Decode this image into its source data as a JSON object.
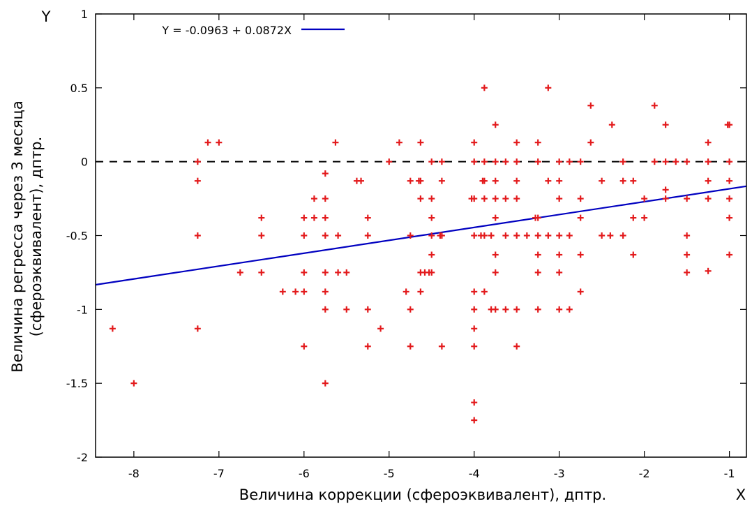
{
  "chart_data": {
    "type": "scatter",
    "title": "",
    "xlabel": "Величина коррекции (сфероэквивалент), дптр.",
    "ylabel_line1": "Величина регресса через 3 месяца",
    "ylabel_line2": "(сфероэквивалент), дптр.",
    "x_axis_letter": "X",
    "y_axis_letter": "Y",
    "xlim": [
      -8.45,
      -0.8
    ],
    "ylim": [
      -2,
      1
    ],
    "x_ticks": [
      -8,
      -7,
      -6,
      -5,
      -4,
      -3,
      -2,
      -1
    ],
    "y_ticks": [
      -2,
      -1.5,
      -1,
      -0.5,
      0,
      0.5,
      1
    ],
    "x_tick_labels": [
      "-8",
      "-7",
      "-6",
      "-5",
      "-4",
      "-3",
      "-2",
      "-1"
    ],
    "y_tick_labels": [
      "-2",
      "-1.5",
      "-1",
      "-0.5",
      "0",
      "0.5",
      "1"
    ],
    "grid": false,
    "legend_position": "top-left",
    "reference_line": {
      "y": 0,
      "style": "dashed",
      "color": "#000000"
    },
    "regression": {
      "label": "Y = -0.0963 + 0.0872X",
      "intercept": -0.0963,
      "slope": 0.0872,
      "color": "#0000c0"
    },
    "point_color": "#e31a1c",
    "points": [
      [
        -8.25,
        -1.13
      ],
      [
        -8.0,
        -1.5
      ],
      [
        -7.25,
        0.0
      ],
      [
        -7.25,
        -0.13
      ],
      [
        -7.25,
        -0.5
      ],
      [
        -7.25,
        -1.13
      ],
      [
        -7.13,
        0.13
      ],
      [
        -7.0,
        0.13
      ],
      [
        -6.75,
        -0.75
      ],
      [
        -6.5,
        -0.38
      ],
      [
        -6.5,
        -0.5
      ],
      [
        -6.5,
        -0.75
      ],
      [
        -6.25,
        -0.88
      ],
      [
        -6.1,
        -0.88
      ],
      [
        -6.0,
        -0.38
      ],
      [
        -6.0,
        -0.5
      ],
      [
        -6.0,
        -0.75
      ],
      [
        -6.0,
        -0.88
      ],
      [
        -6.0,
        -1.25
      ],
      [
        -5.88,
        -0.25
      ],
      [
        -5.88,
        -0.38
      ],
      [
        -5.75,
        -0.08
      ],
      [
        -5.75,
        -0.25
      ],
      [
        -5.75,
        -0.38
      ],
      [
        -5.75,
        -0.5
      ],
      [
        -5.75,
        -0.75
      ],
      [
        -5.75,
        -0.88
      ],
      [
        -5.75,
        -1.0
      ],
      [
        -5.75,
        -1.5
      ],
      [
        -5.63,
        0.13
      ],
      [
        -5.6,
        -0.5
      ],
      [
        -5.6,
        -0.75
      ],
      [
        -5.5,
        -0.75
      ],
      [
        -5.5,
        -1.0
      ],
      [
        -5.38,
        -0.13
      ],
      [
        -5.33,
        -0.13
      ],
      [
        -5.25,
        -0.38
      ],
      [
        -5.25,
        -0.5
      ],
      [
        -5.25,
        -1.0
      ],
      [
        -5.25,
        -1.25
      ],
      [
        -5.1,
        -1.13
      ],
      [
        -5.0,
        0.0
      ],
      [
        -4.88,
        0.13
      ],
      [
        -4.8,
        -0.88
      ],
      [
        -4.75,
        -0.13
      ],
      [
        -4.75,
        -0.5
      ],
      [
        -4.75,
        -1.0
      ],
      [
        -4.75,
        -1.25
      ],
      [
        -4.63,
        0.13
      ],
      [
        -4.63,
        -0.13
      ],
      [
        -4.65,
        -0.13
      ],
      [
        -4.63,
        -0.25
      ],
      [
        -4.63,
        -0.75
      ],
      [
        -4.63,
        -0.88
      ],
      [
        -4.58,
        -0.75
      ],
      [
        -4.53,
        -0.75
      ],
      [
        -4.5,
        0.0
      ],
      [
        -4.5,
        -0.25
      ],
      [
        -4.5,
        -0.38
      ],
      [
        -4.5,
        -0.5
      ],
      [
        -4.5,
        -0.63
      ],
      [
        -4.5,
        -0.75
      ],
      [
        -4.38,
        0.0
      ],
      [
        -4.38,
        -0.13
      ],
      [
        -4.38,
        -0.5
      ],
      [
        -4.4,
        -0.5
      ],
      [
        -4.38,
        -1.25
      ],
      [
        -4.0,
        0.13
      ],
      [
        -4.0,
        0.0
      ],
      [
        -4.0,
        -0.25
      ],
      [
        -4.03,
        -0.25
      ],
      [
        -4.0,
        -0.5
      ],
      [
        -4.0,
        -0.88
      ],
      [
        -4.0,
        -1.0
      ],
      [
        -4.0,
        -1.13
      ],
      [
        -4.0,
        -1.25
      ],
      [
        -4.0,
        -1.63
      ],
      [
        -4.0,
        -1.75
      ],
      [
        -3.92,
        -0.5
      ],
      [
        -3.88,
        0.5
      ],
      [
        -3.88,
        0.0
      ],
      [
        -3.88,
        -0.13
      ],
      [
        -3.9,
        -0.13
      ],
      [
        -3.88,
        -0.25
      ],
      [
        -3.88,
        -0.5
      ],
      [
        -3.88,
        -0.88
      ],
      [
        -3.8,
        -0.5
      ],
      [
        -3.8,
        -1.0
      ],
      [
        -3.75,
        0.25
      ],
      [
        -3.75,
        0.0
      ],
      [
        -3.75,
        -0.13
      ],
      [
        -3.75,
        -0.25
      ],
      [
        -3.75,
        -0.38
      ],
      [
        -3.75,
        -0.63
      ],
      [
        -3.75,
        -0.75
      ],
      [
        -3.75,
        -1.0
      ],
      [
        -3.63,
        0.0
      ],
      [
        -3.63,
        -0.25
      ],
      [
        -3.63,
        -0.5
      ],
      [
        -3.63,
        -1.0
      ],
      [
        -3.5,
        0.13
      ],
      [
        -3.5,
        0.0
      ],
      [
        -3.5,
        -0.13
      ],
      [
        -3.5,
        -0.25
      ],
      [
        -3.5,
        -0.5
      ],
      [
        -3.5,
        -1.0
      ],
      [
        -3.5,
        -1.25
      ],
      [
        -3.38,
        -0.5
      ],
      [
        -3.28,
        -0.38
      ],
      [
        -3.25,
        -0.38
      ],
      [
        -3.25,
        0.13
      ],
      [
        -3.25,
        0.0
      ],
      [
        -3.25,
        -0.5
      ],
      [
        -3.25,
        -0.63
      ],
      [
        -3.25,
        -0.75
      ],
      [
        -3.25,
        -1.0
      ],
      [
        -3.13,
        0.5
      ],
      [
        -3.13,
        -0.13
      ],
      [
        -3.13,
        -0.5
      ],
      [
        -3.0,
        0.0
      ],
      [
        -3.0,
        -0.13
      ],
      [
        -3.0,
        -0.25
      ],
      [
        -3.0,
        -0.5
      ],
      [
        -3.0,
        -0.63
      ],
      [
        -3.0,
        -0.75
      ],
      [
        -3.0,
        -1.0
      ],
      [
        -2.88,
        0.0
      ],
      [
        -2.88,
        -0.5
      ],
      [
        -2.88,
        -1.0
      ],
      [
        -2.75,
        0.0
      ],
      [
        -2.75,
        -0.25
      ],
      [
        -2.75,
        -0.38
      ],
      [
        -2.75,
        -0.63
      ],
      [
        -2.75,
        -0.88
      ],
      [
        -2.63,
        0.38
      ],
      [
        -2.63,
        0.13
      ],
      [
        -2.5,
        -0.13
      ],
      [
        -2.5,
        -0.5
      ],
      [
        -2.4,
        -0.5
      ],
      [
        -2.38,
        0.25
      ],
      [
        -2.25,
        0.0
      ],
      [
        -2.25,
        -0.13
      ],
      [
        -2.25,
        -0.5
      ],
      [
        -2.13,
        -0.13
      ],
      [
        -2.13,
        -0.38
      ],
      [
        -2.13,
        -0.63
      ],
      [
        -2.0,
        -0.25
      ],
      [
        -2.0,
        -0.38
      ],
      [
        -1.88,
        0.38
      ],
      [
        -1.88,
        0.0
      ],
      [
        -1.75,
        0.25
      ],
      [
        -1.75,
        0.0
      ],
      [
        -1.75,
        -0.19
      ],
      [
        -1.75,
        -0.25
      ],
      [
        -1.63,
        0.0
      ],
      [
        -1.5,
        0.0
      ],
      [
        -1.5,
        -0.25
      ],
      [
        -1.5,
        -0.5
      ],
      [
        -1.5,
        -0.63
      ],
      [
        -1.5,
        -0.75
      ],
      [
        -1.25,
        0.13
      ],
      [
        -1.25,
        0.0
      ],
      [
        -1.25,
        -0.13
      ],
      [
        -1.25,
        -0.25
      ],
      [
        -1.25,
        -0.74
      ],
      [
        -1.0,
        0.25
      ],
      [
        -1.02,
        0.25
      ],
      [
        -1.0,
        0.0
      ],
      [
        -1.0,
        -0.13
      ],
      [
        -1.0,
        -0.25
      ],
      [
        -1.0,
        -0.38
      ],
      [
        -1.0,
        -0.63
      ]
    ]
  }
}
